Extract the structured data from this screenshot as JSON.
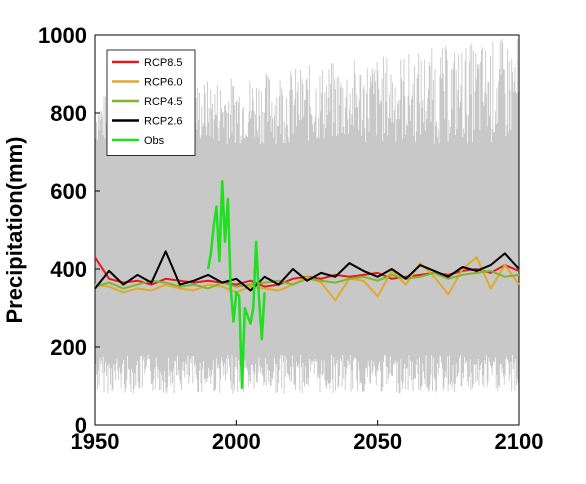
{
  "chart_data": {
    "type": "line",
    "title": "",
    "xlabel": "",
    "ylabel": "Precipitation(mm)",
    "xlim": [
      1950,
      2100
    ],
    "ylim": [
      0,
      1000
    ],
    "xticks": [
      "1950",
      "2000",
      "2050",
      "2100"
    ],
    "yticks": [
      "0",
      "200",
      "400",
      "600",
      "800",
      "1000"
    ],
    "grid": false,
    "legend_position": "top-left",
    "ensemble_band": {
      "color": "#c8c8c8",
      "approx_low": 180,
      "approx_high": 720,
      "approx_min": 80,
      "approx_max": 1000
    },
    "series": [
      {
        "name": "RCP8.5",
        "color": "#e8191c",
        "x": [
          1950,
          1955,
          1960,
          1965,
          1970,
          1975,
          1980,
          1985,
          1990,
          1995,
          2000,
          2005,
          2010,
          2015,
          2020,
          2025,
          2030,
          2035,
          2040,
          2045,
          2050,
          2055,
          2060,
          2065,
          2070,
          2075,
          2080,
          2085,
          2090,
          2095,
          2100
        ],
        "values": [
          430,
          375,
          365,
          370,
          360,
          375,
          370,
          365,
          370,
          365,
          360,
          370,
          355,
          360,
          375,
          380,
          375,
          385,
          380,
          385,
          390,
          375,
          380,
          385,
          390,
          385,
          395,
          400,
          390,
          410,
          395
        ]
      },
      {
        "name": "RCP6.0",
        "color": "#e3a92b",
        "x": [
          1950,
          1955,
          1960,
          1965,
          1970,
          1975,
          1980,
          1985,
          1990,
          1995,
          2000,
          2005,
          2010,
          2015,
          2020,
          2025,
          2030,
          2035,
          2040,
          2045,
          2050,
          2055,
          2060,
          2065,
          2070,
          2075,
          2080,
          2085,
          2090,
          2095,
          2100
        ],
        "values": [
          360,
          355,
          340,
          350,
          345,
          360,
          350,
          345,
          360,
          355,
          340,
          355,
          350,
          345,
          360,
          380,
          365,
          320,
          375,
          370,
          330,
          395,
          360,
          415,
          380,
          335,
          400,
          430,
          350,
          410,
          360
        ]
      },
      {
        "name": "RCP4.5",
        "color": "#80b628",
        "x": [
          1950,
          1955,
          1960,
          1965,
          1970,
          1975,
          1980,
          1985,
          1990,
          1995,
          2000,
          2005,
          2010,
          2015,
          2020,
          2025,
          2030,
          2035,
          2040,
          2045,
          2050,
          2055,
          2060,
          2065,
          2070,
          2075,
          2080,
          2085,
          2090,
          2095,
          2100
        ],
        "values": [
          355,
          365,
          350,
          360,
          370,
          365,
          355,
          360,
          350,
          365,
          355,
          360,
          365,
          370,
          360,
          375,
          370,
          365,
          375,
          380,
          370,
          385,
          375,
          380,
          390,
          375,
          385,
          390,
          395,
          380,
          385
        ]
      },
      {
        "name": "RCP2.6",
        "color": "#000000",
        "x": [
          1950,
          1955,
          1960,
          1965,
          1970,
          1975,
          1980,
          1985,
          1990,
          1995,
          2000,
          2005,
          2010,
          2015,
          2020,
          2025,
          2030,
          2035,
          2040,
          2045,
          2050,
          2055,
          2060,
          2065,
          2070,
          2075,
          2080,
          2085,
          2090,
          2095,
          2100
        ],
        "values": [
          350,
          395,
          360,
          385,
          365,
          445,
          360,
          370,
          385,
          365,
          375,
          345,
          380,
          360,
          400,
          370,
          390,
          380,
          415,
          395,
          380,
          400,
          375,
          410,
          395,
          380,
          405,
          395,
          410,
          440,
          400
        ]
      },
      {
        "name": "Obs",
        "color": "#1ee01e",
        "x": [
          1990,
          1991,
          1992,
          1993,
          1994,
          1995,
          1996,
          1997,
          1998,
          1999,
          2000,
          2001,
          2002,
          2003,
          2004,
          2005,
          2006,
          2007,
          2008,
          2009,
          2010
        ],
        "values": [
          400,
          440,
          510,
          560,
          420,
          625,
          470,
          580,
          350,
          265,
          340,
          330,
          95,
          300,
          280,
          260,
          300,
          470,
          330,
          220,
          340
        ]
      }
    ]
  }
}
